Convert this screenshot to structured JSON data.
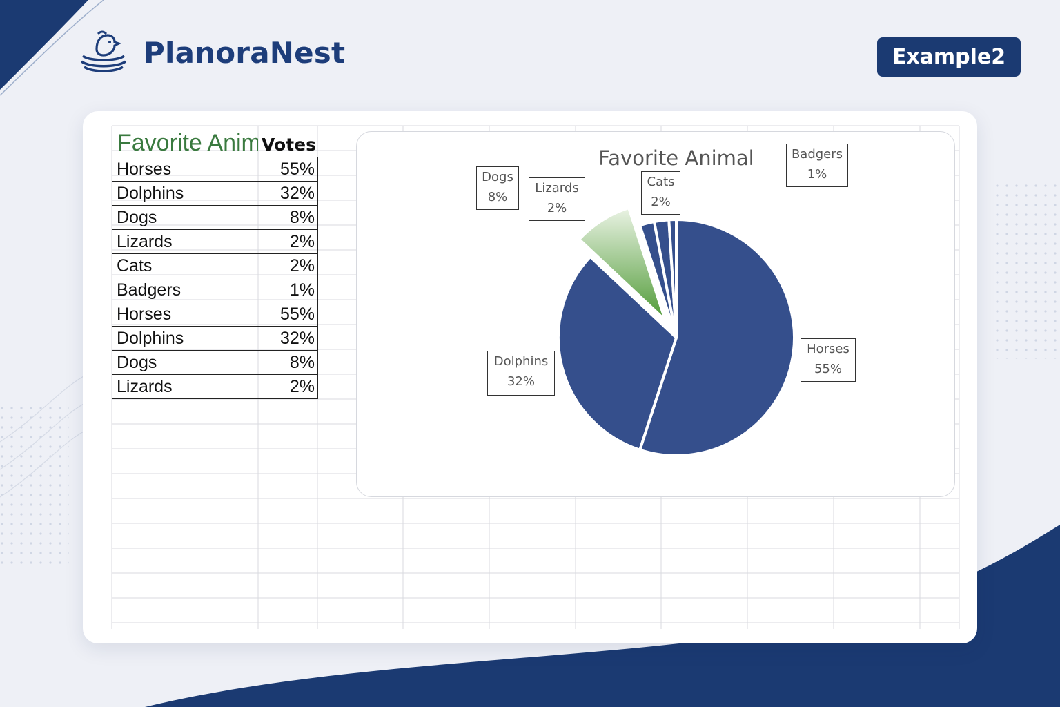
{
  "brand": {
    "name": "PlanoraNest",
    "badge": "Example2"
  },
  "sheet": {
    "title": "Favorite Animal",
    "votes_header": "Votes",
    "rows": [
      {
        "name": "Horses",
        "value": "55%"
      },
      {
        "name": "Dolphins",
        "value": "32%"
      },
      {
        "name": "Dogs",
        "value": "8%"
      },
      {
        "name": "Lizards",
        "value": "2%"
      },
      {
        "name": "Cats",
        "value": "2%"
      },
      {
        "name": "Badgers",
        "value": "1%"
      },
      {
        "name": "Horses",
        "value": "55%"
      },
      {
        "name": "Dolphins",
        "value": "32%"
      },
      {
        "name": "Dogs",
        "value": "8%"
      },
      {
        "name": "Lizards",
        "value": "2%"
      }
    ]
  },
  "chart_data": {
    "type": "pie",
    "title": "Favorite Animal",
    "categories": [
      "Horses",
      "Dolphins",
      "Dogs",
      "Lizards",
      "Cats",
      "Badgers"
    ],
    "values": [
      55,
      32,
      8,
      2,
      2,
      1
    ],
    "labels": [
      "55%",
      "32%",
      "8%",
      "2%",
      "2%",
      "1%"
    ],
    "colors": [
      "#354f8c",
      "#354f8c",
      "#5a9a3d",
      "#354f8c",
      "#354f8c",
      "#354f8c"
    ],
    "exploded": [
      "Dogs"
    ],
    "legend": "none"
  }
}
